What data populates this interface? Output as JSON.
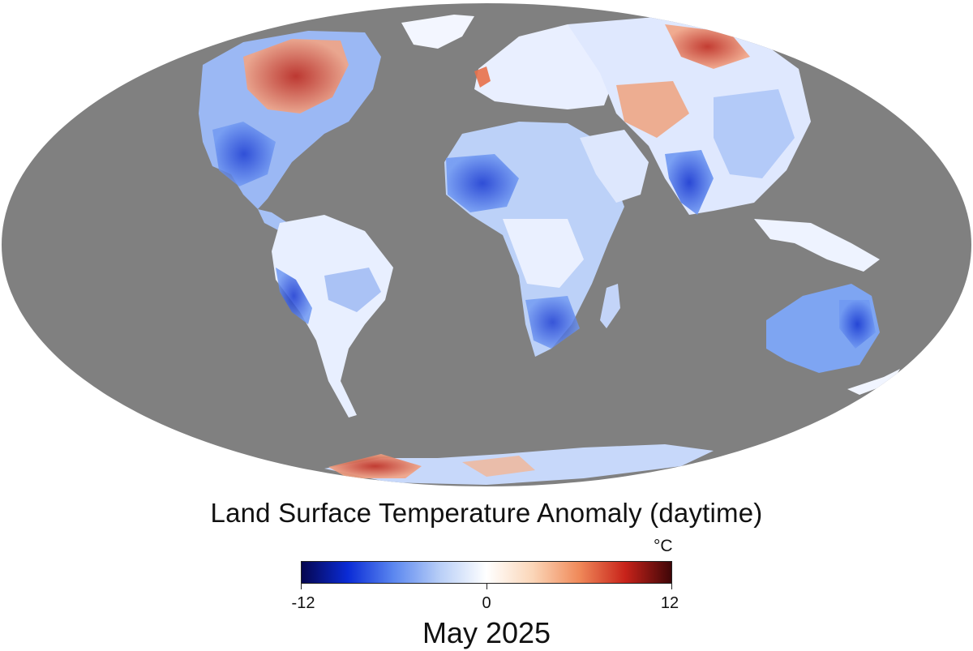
{
  "title": "Land Surface Temperature Anomaly (daytime)",
  "date": "May 2025",
  "legend": {
    "unit": "°C",
    "min": -12,
    "max": 12,
    "ticks": [
      "-12",
      "0",
      "12"
    ],
    "gradient": [
      "#06064f",
      "#0a2bd6",
      "#5c88f0",
      "#b9cff7",
      "#ffffff",
      "#fbd6b8",
      "#f08a5a",
      "#c8231a",
      "#3f0608"
    ]
  },
  "colors": {
    "ocean": "#808080",
    "cold_strong": "#1a3fd8",
    "cold_mid": "#5f8ff0",
    "cold_light": "#c7d8fa",
    "neutral": "#f5f7ff",
    "warm_light": "#f7c9ae",
    "warm_mid": "#e8704a",
    "warm_strong": "#b8201a"
  },
  "projection": "Mollweide"
}
